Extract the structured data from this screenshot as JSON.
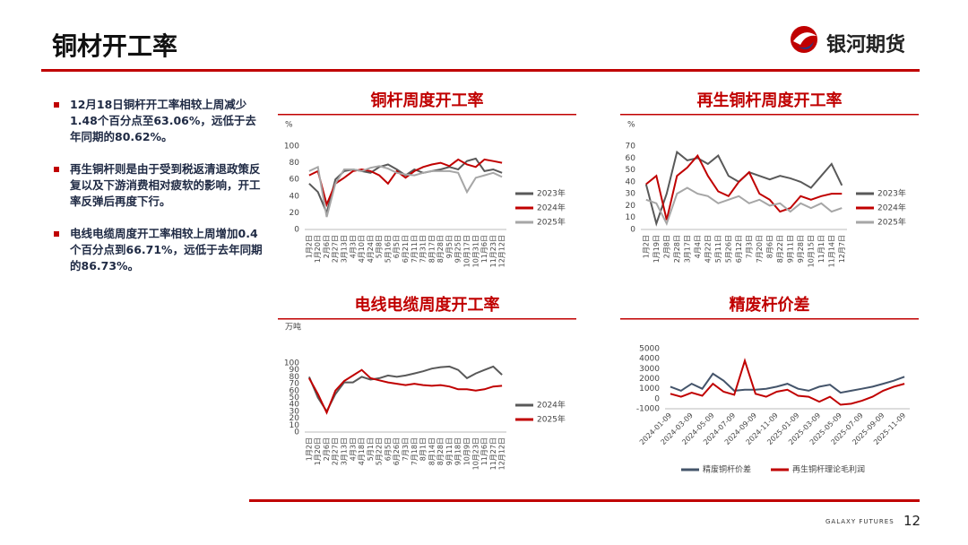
{
  "header": {
    "title": "铜材开工率",
    "logo": "银河期货"
  },
  "bullets": [
    "12月18日铜杆开工率相较上周减少1.48个百分点至63.06%，远低于去年同期的80.62%。",
    "再生铜杆则是由于受到税返清退政策反复以及下游消费相对疲软的影响，开工率反弹后再度下行。",
    "电线电缆周度开工率相较上周增加0.4个百分点到66.71%，远低于去年同期的86.73%。"
  ],
  "footer": {
    "brand": "GALAXY FUTURES",
    "page": "12"
  },
  "chart_data": [
    {
      "type": "line",
      "title": "铜杆周度开工率",
      "y_label": "%",
      "legend": "right",
      "grid": false,
      "categories": [
        "1月2日",
        "1月20日",
        "2月6日",
        "2月27日",
        "3月13日",
        "4月3日",
        "4月10日",
        "4月24日",
        "5月8日",
        "5月16日",
        "6月5日",
        "6月21日",
        "7月11日",
        "7月31日",
        "8月17日",
        "8月28日",
        "9月5日",
        "9月25日",
        "10月17日",
        "10月31日",
        "11月6日",
        "11月23日",
        "12月12日"
      ],
      "ylim": [
        0,
        100
      ],
      "yticks": [
        0,
        20,
        40,
        60,
        80,
        100
      ],
      "series": [
        {
          "name": "2023年",
          "color": "#595959",
          "values": [
            55,
            45,
            20,
            60,
            70,
            72,
            70,
            68,
            75,
            78,
            72,
            65,
            72,
            68,
            70,
            72,
            75,
            72,
            82,
            85,
            70,
            72,
            68
          ]
        },
        {
          "name": "2024年",
          "color": "#c00000",
          "values": [
            65,
            70,
            30,
            55,
            62,
            70,
            72,
            70,
            65,
            55,
            70,
            62,
            70,
            75,
            78,
            80,
            76,
            84,
            78,
            75,
            84,
            82,
            80
          ]
        },
        {
          "name": "2025年",
          "color": "#a6a6a6",
          "values": [
            70,
            75,
            15,
            55,
            72,
            72,
            70,
            74,
            76,
            73,
            68,
            66,
            65,
            68,
            70,
            70,
            70,
            68,
            45,
            62,
            65,
            68,
            63
          ]
        }
      ]
    },
    {
      "type": "line",
      "title": "再生铜杆周度开工率",
      "y_label": "%",
      "legend": "right",
      "grid": false,
      "categories": [
        "1月2日",
        "1月19日",
        "2月8日",
        "2月28日",
        "3月17日",
        "4月4日",
        "4月22日",
        "5月11日",
        "5月26日",
        "6月12日",
        "7月3日",
        "7月20日",
        "8月6日",
        "8月22日",
        "9月11日",
        "9月28日",
        "10月15日",
        "11月1日",
        "11月14日",
        "12月7日"
      ],
      "ylim": [
        0,
        70
      ],
      "yticks": [
        0,
        10,
        20,
        30,
        40,
        50,
        60,
        70
      ],
      "series": [
        {
          "name": "2023年",
          "color": "#595959",
          "values": [
            38,
            5,
            30,
            65,
            58,
            60,
            55,
            62,
            45,
            40,
            48,
            45,
            42,
            45,
            43,
            40,
            35,
            45,
            55,
            37
          ]
        },
        {
          "name": "2024年",
          "color": "#c00000",
          "values": [
            38,
            45,
            8,
            45,
            52,
            62,
            45,
            32,
            28,
            40,
            48,
            30,
            25,
            15,
            18,
            28,
            25,
            28,
            30,
            30
          ]
        },
        {
          "name": "2025年",
          "color": "#a6a6a6",
          "values": [
            25,
            22,
            5,
            30,
            35,
            30,
            28,
            22,
            25,
            28,
            22,
            25,
            20,
            22,
            15,
            22,
            18,
            22,
            15,
            18
          ]
        }
      ]
    },
    {
      "type": "line",
      "title": "电线电缆周度开工率",
      "y_label": "万吨",
      "legend": "right",
      "grid": false,
      "categories": [
        "1月2日",
        "1月20日",
        "2月6日",
        "2月27日",
        "3月13日",
        "4月3日",
        "4月18日",
        "5月1日",
        "5月22日",
        "6月5日",
        "6月26日",
        "7月3日",
        "7月18日",
        "8月1日",
        "8月14日",
        "8月28日",
        "9月11日",
        "9月18日",
        "10月9日",
        "10月23日",
        "11月6日",
        "11月27日",
        "12月12日"
      ],
      "ylim": [
        0,
        100
      ],
      "yticks": [
        0,
        10,
        20,
        30,
        40,
        50,
        60,
        70,
        80,
        90,
        100
      ],
      "series": [
        {
          "name": "2024年",
          "color": "#595959",
          "values": [
            80,
            50,
            30,
            55,
            72,
            72,
            80,
            76,
            78,
            82,
            80,
            82,
            85,
            88,
            92,
            94,
            95,
            90,
            78,
            85,
            90,
            95,
            83
          ]
        },
        {
          "name": "2025年",
          "color": "#c00000",
          "values": [
            78,
            55,
            28,
            60,
            74,
            82,
            90,
            78,
            75,
            72,
            70,
            68,
            70,
            68,
            67,
            68,
            66,
            62,
            62,
            60,
            62,
            66,
            67
          ]
        }
      ]
    },
    {
      "type": "line",
      "title": "精废杆价差",
      "legend": "bottom",
      "grid": false,
      "categories": [
        "2024-01-09",
        null,
        "2024-03-09",
        null,
        "2024-05-09",
        null,
        "2024-07-09",
        null,
        "2024-09-09",
        null,
        "2024-11-09",
        null,
        "2025-01-09",
        null,
        "2025-03-09",
        null,
        "2025-05-09",
        null,
        "2025-07-09",
        null,
        "2025-09-09",
        null,
        "2025-11-09"
      ],
      "ylim": [
        -1000,
        5000
      ],
      "yticks": [
        -1000,
        0,
        1000,
        2000,
        3000,
        4000,
        5000
      ],
      "series": [
        {
          "name": "精废铜杆价差",
          "color": "#44546a",
          "values": [
            1200,
            800,
            1500,
            1000,
            2500,
            1800,
            800,
            900,
            900,
            1000,
            1200,
            1500,
            1000,
            800,
            1200,
            1400,
            600,
            800,
            1000,
            1200,
            1500,
            1800,
            2200
          ]
        },
        {
          "name": "再生铜杆理论毛利润",
          "color": "#c00000",
          "values": [
            500,
            200,
            600,
            300,
            1500,
            700,
            400,
            3800,
            500,
            200,
            700,
            900,
            300,
            200,
            -300,
            200,
            -600,
            -500,
            -200,
            200,
            800,
            1200,
            1500
          ]
        }
      ]
    }
  ]
}
